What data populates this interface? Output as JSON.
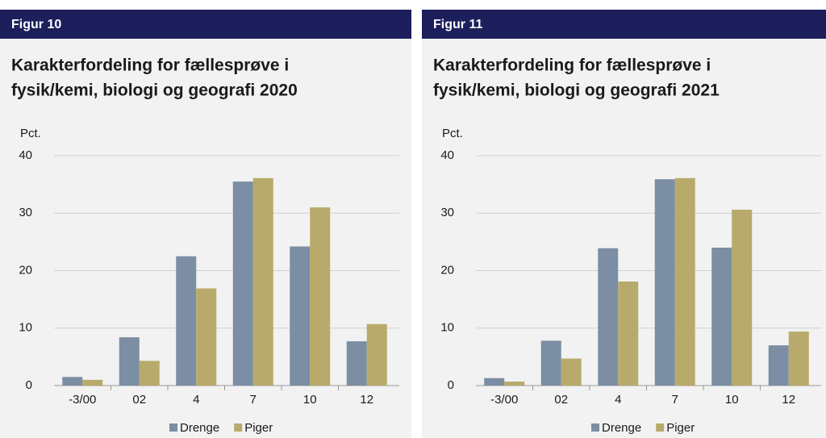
{
  "chart_data": [
    {
      "type": "bar",
      "figure": "Figur 10",
      "title": [
        "Karakterfordeling for fællesprøve i",
        "fysik/kemi, biologi og geografi 2020"
      ],
      "ylabel": "Pct.",
      "categories": [
        "-3/00",
        "02",
        "4",
        "7",
        "10",
        "12"
      ],
      "series": [
        {
          "name": "Drenge",
          "color": "#7b8ea3",
          "values": [
            1.5,
            8.4,
            22.5,
            35.5,
            24.2,
            7.7
          ]
        },
        {
          "name": "Piger",
          "color": "#b8aa6a",
          "values": [
            1.0,
            4.3,
            16.9,
            36.1,
            31.0,
            10.7
          ]
        }
      ],
      "ylim": [
        0,
        40
      ],
      "yticks": [
        0,
        10,
        20,
        30,
        40
      ],
      "grid": true,
      "legend": "bottom"
    },
    {
      "type": "bar",
      "figure": "Figur 11",
      "title": [
        "Karakterfordeling for fællesprøve i",
        "fysik/kemi, biologi og geografi 2021"
      ],
      "ylabel": "Pct.",
      "categories": [
        "-3/00",
        "02",
        "4",
        "7",
        "10",
        "12"
      ],
      "series": [
        {
          "name": "Drenge",
          "color": "#7b8ea3",
          "values": [
            1.3,
            7.8,
            23.9,
            35.9,
            24.0,
            7.0
          ]
        },
        {
          "name": "Piger",
          "color": "#b8aa6a",
          "values": [
            0.7,
            4.7,
            18.1,
            36.1,
            30.6,
            9.4
          ]
        }
      ],
      "ylim": [
        0,
        40
      ],
      "yticks": [
        0,
        10,
        20,
        30,
        40
      ],
      "grid": true,
      "legend": "bottom"
    }
  ]
}
